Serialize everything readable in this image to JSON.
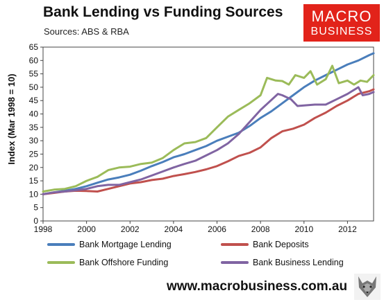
{
  "title": "Bank Lending vs Funding Sources",
  "subtitle": "Sources: ABS & RBA",
  "logo": {
    "line1": "MACRO",
    "line2": "BUSINESS",
    "color": "#e2231a",
    "icon": "wolf-logo-icon"
  },
  "footer_url": "www.macrobusiness.com.au",
  "chart_data": {
    "type": "line",
    "title": "Bank Lending vs Funding Sources",
    "ylabel": "Index (Mar 1998 = 10)",
    "xlabel": "",
    "xlim": [
      1998,
      2013.2
    ],
    "ylim": [
      0,
      65
    ],
    "xticks": [
      1998,
      2000,
      2002,
      2004,
      2006,
      2008,
      2010,
      2012
    ],
    "yticks": [
      0,
      5,
      10,
      15,
      20,
      25,
      30,
      35,
      40,
      45,
      50,
      55,
      60,
      65
    ],
    "grid": false,
    "legend_position": "bottom",
    "series": [
      {
        "name": "Bank Mortgage Lending",
        "color": "#4a7ebb",
        "points": [
          [
            1998,
            10
          ],
          [
            1998.5,
            10.7
          ],
          [
            1999,
            11.3
          ],
          [
            1999.5,
            12
          ],
          [
            2000,
            13
          ],
          [
            2000.5,
            14.3
          ],
          [
            2001,
            15.5
          ],
          [
            2001.5,
            16.3
          ],
          [
            2002,
            17.3
          ],
          [
            2002.5,
            18.8
          ],
          [
            2003,
            20.5
          ],
          [
            2003.5,
            22
          ],
          [
            2004,
            23.8
          ],
          [
            2004.5,
            25
          ],
          [
            2005,
            26.5
          ],
          [
            2005.5,
            28
          ],
          [
            2006,
            30
          ],
          [
            2006.5,
            31.5
          ],
          [
            2007,
            33
          ],
          [
            2007.5,
            35.5
          ],
          [
            2008,
            38.5
          ],
          [
            2008.5,
            41
          ],
          [
            2009,
            44
          ],
          [
            2009.5,
            47
          ],
          [
            2010,
            50
          ],
          [
            2010.5,
            52.5
          ],
          [
            2011,
            54.5
          ],
          [
            2011.5,
            56.5
          ],
          [
            2012,
            58.5
          ],
          [
            2012.5,
            60
          ],
          [
            2013,
            62
          ],
          [
            2013.2,
            62.7
          ]
        ]
      },
      {
        "name": "Bank Deposits",
        "color": "#c0504d",
        "points": [
          [
            1998,
            10
          ],
          [
            1998.5,
            10.5
          ],
          [
            1999,
            11
          ],
          [
            1999.5,
            11.3
          ],
          [
            2000,
            11.2
          ],
          [
            2000.5,
            11
          ],
          [
            2001,
            12
          ],
          [
            2001.5,
            13
          ],
          [
            2002,
            14
          ],
          [
            2002.5,
            14.5
          ],
          [
            2003,
            15.3
          ],
          [
            2003.5,
            15.8
          ],
          [
            2004,
            16.8
          ],
          [
            2004.5,
            17.5
          ],
          [
            2005,
            18.3
          ],
          [
            2005.5,
            19.3
          ],
          [
            2006,
            20.5
          ],
          [
            2006.5,
            22.3
          ],
          [
            2007,
            24.3
          ],
          [
            2007.5,
            25.5
          ],
          [
            2008,
            27.5
          ],
          [
            2008.5,
            31
          ],
          [
            2009,
            33.5
          ],
          [
            2009.5,
            34.5
          ],
          [
            2010,
            36
          ],
          [
            2010.5,
            38.5
          ],
          [
            2011,
            40.5
          ],
          [
            2011.5,
            43
          ],
          [
            2012,
            45
          ],
          [
            2012.5,
            47.5
          ],
          [
            2013,
            48.5
          ],
          [
            2013.2,
            49.2
          ]
        ]
      },
      {
        "name": "Bank Offshore Funding",
        "color": "#9bbb59",
        "points": [
          [
            1998,
            11
          ],
          [
            1998.5,
            11.7
          ],
          [
            1999,
            12
          ],
          [
            1999.5,
            13
          ],
          [
            2000,
            15
          ],
          [
            2000.5,
            16.5
          ],
          [
            2001,
            19
          ],
          [
            2001.5,
            20
          ],
          [
            2002,
            20.3
          ],
          [
            2002.5,
            21.3
          ],
          [
            2003,
            21.8
          ],
          [
            2003.5,
            23.5
          ],
          [
            2004,
            26.5
          ],
          [
            2004.5,
            29
          ],
          [
            2005,
            29.5
          ],
          [
            2005.5,
            31
          ],
          [
            2006,
            35
          ],
          [
            2006.5,
            39
          ],
          [
            2007,
            41.5
          ],
          [
            2007.5,
            44
          ],
          [
            2008,
            47
          ],
          [
            2008.3,
            53.5
          ],
          [
            2008.7,
            52.5
          ],
          [
            2009,
            52.3
          ],
          [
            2009.3,
            51
          ],
          [
            2009.6,
            54.5
          ],
          [
            2010,
            53.5
          ],
          [
            2010.3,
            56
          ],
          [
            2010.6,
            51
          ],
          [
            2011,
            53
          ],
          [
            2011.3,
            58
          ],
          [
            2011.6,
            51.5
          ],
          [
            2012,
            52.5
          ],
          [
            2012.3,
            51
          ],
          [
            2012.6,
            52.5
          ],
          [
            2012.9,
            52
          ],
          [
            2013.2,
            54.5
          ]
        ]
      },
      {
        "name": "Bank Business Lending",
        "color": "#8064a2",
        "points": [
          [
            1998,
            10
          ],
          [
            1998.5,
            10.7
          ],
          [
            1999,
            11
          ],
          [
            1999.5,
            11.5
          ],
          [
            2000,
            12
          ],
          [
            2000.5,
            13
          ],
          [
            2001,
            13.5
          ],
          [
            2001.5,
            13.5
          ],
          [
            2002,
            14.5
          ],
          [
            2002.5,
            15.5
          ],
          [
            2003,
            17
          ],
          [
            2003.5,
            18.5
          ],
          [
            2004,
            20
          ],
          [
            2004.5,
            21.3
          ],
          [
            2005,
            22.5
          ],
          [
            2005.5,
            24.5
          ],
          [
            2006,
            26.5
          ],
          [
            2006.5,
            29
          ],
          [
            2007,
            32.5
          ],
          [
            2007.5,
            37
          ],
          [
            2008,
            41.5
          ],
          [
            2008.4,
            44.5
          ],
          [
            2008.8,
            47.5
          ],
          [
            2009,
            47
          ],
          [
            2009.4,
            45.5
          ],
          [
            2009.7,
            43
          ],
          [
            2010,
            43.2
          ],
          [
            2010.5,
            43.5
          ],
          [
            2011,
            43.5
          ],
          [
            2011.5,
            45.5
          ],
          [
            2012,
            47.5
          ],
          [
            2012.3,
            49
          ],
          [
            2012.5,
            50
          ],
          [
            2012.7,
            47
          ],
          [
            2013,
            47.5
          ],
          [
            2013.2,
            48.2
          ]
        ]
      }
    ]
  }
}
